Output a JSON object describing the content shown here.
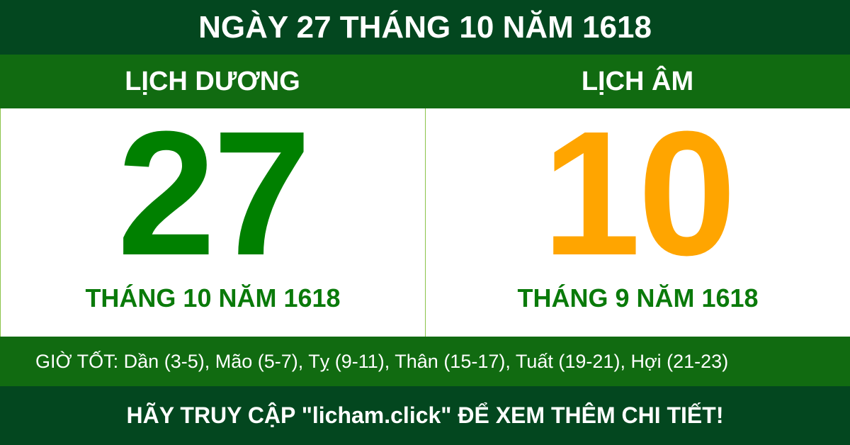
{
  "title": "NGÀY 27 THÁNG 10 NĂM 1618",
  "solar": {
    "heading": "LỊCH DƯƠNG",
    "day": "27",
    "month_year": "THÁNG 10 NĂM 1618"
  },
  "lunar": {
    "heading": "LỊCH ÂM",
    "day": "10",
    "month_year": "THÁNG 9 NĂM 1618"
  },
  "good_hours": "GIỜ TỐT: Dần (3-5), Mão (5-7), Tỵ (9-11), Thân (15-17), Tuất (19-21), Hợi (21-23)",
  "footer": "HÃY TRUY CẬP \"licham.click\" ĐỂ XEM THÊM CHI TIẾT!",
  "colors": {
    "dark_green": "#03471f",
    "green": "#116b11",
    "solar_day": "#008000",
    "lunar_day": "#ffa500"
  }
}
